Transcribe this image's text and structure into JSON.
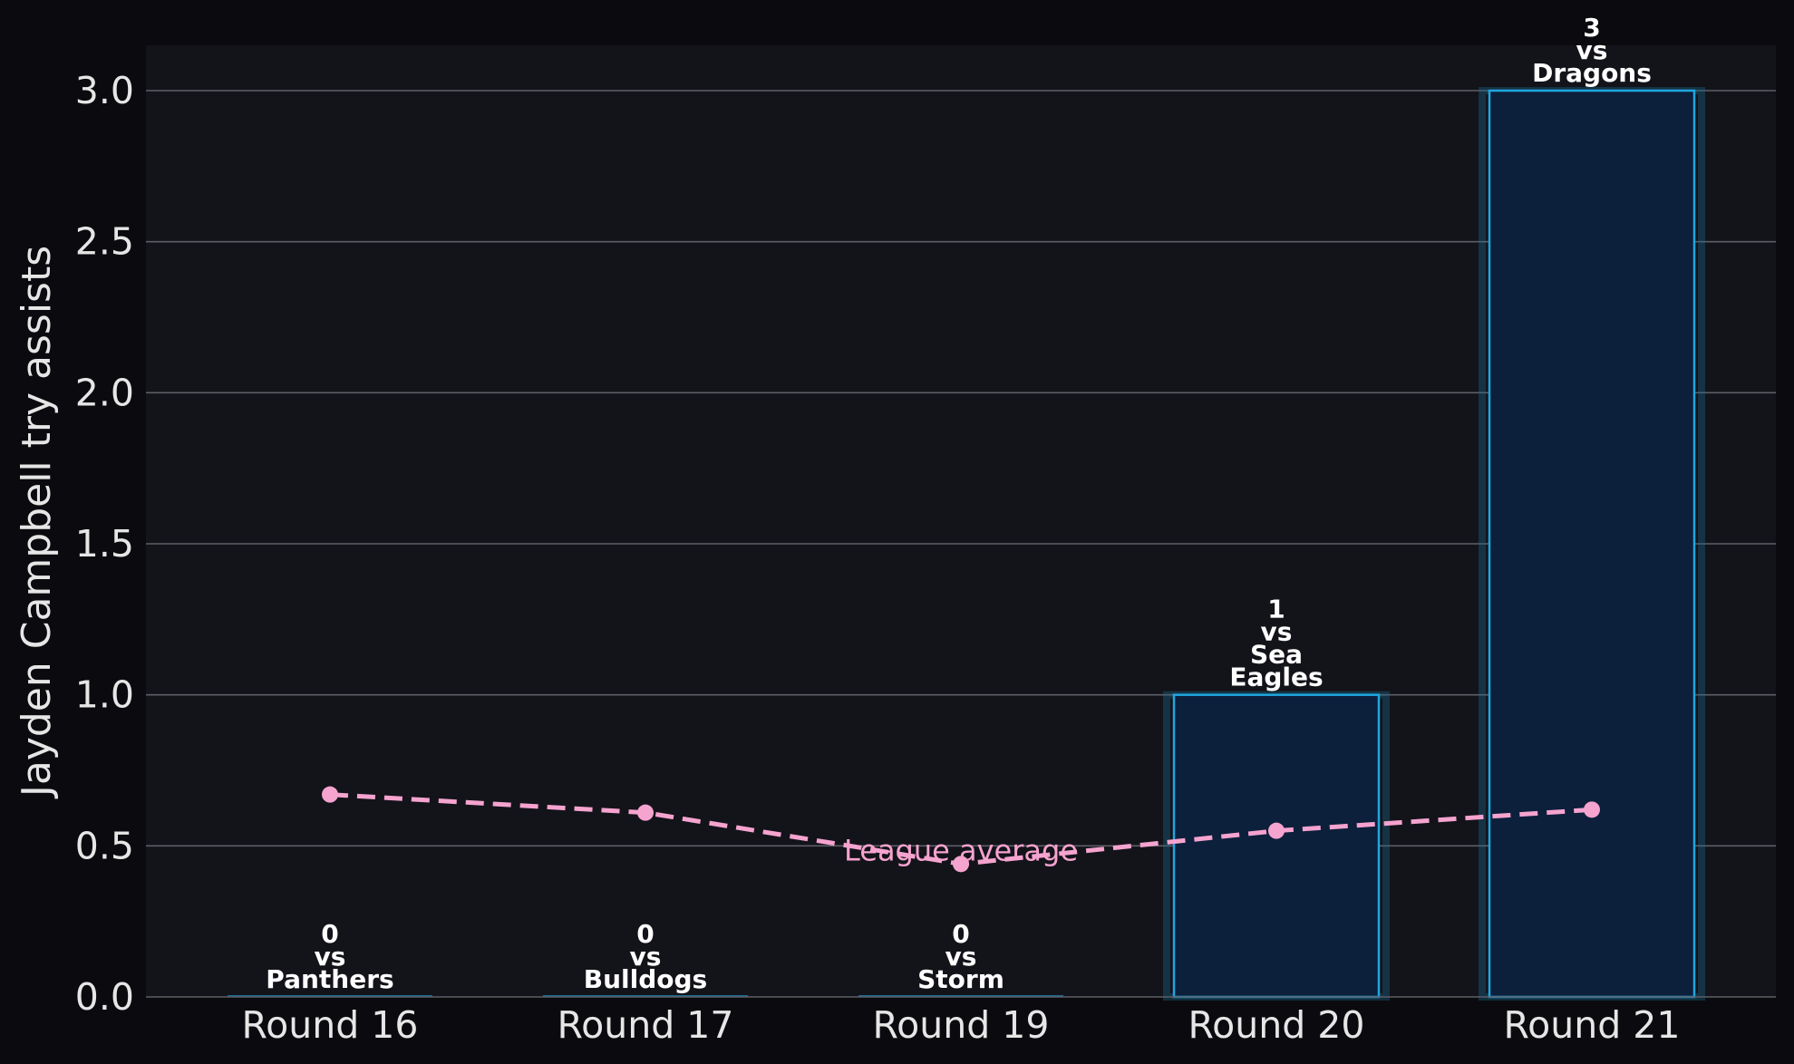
{
  "chart_data": {
    "type": "bar",
    "categories": [
      "Round 16",
      "Round 17",
      "Round 19",
      "Round 20",
      "Round 21"
    ],
    "values": [
      0,
      0,
      0,
      1,
      3
    ],
    "opponents": [
      "Panthers",
      "Bulldogs",
      "Storm",
      "Sea Eagles",
      "Dragons"
    ],
    "bar_labels": [
      [
        "0",
        "vs",
        "Panthers"
      ],
      [
        "0",
        "vs",
        "Bulldogs"
      ],
      [
        "0",
        "vs",
        "Storm"
      ],
      [
        "1",
        "vs",
        "Sea",
        "Eagles"
      ],
      [
        "3",
        "vs",
        "Dragons"
      ]
    ],
    "series": [
      {
        "name": "League average",
        "type": "line",
        "style": "dashed",
        "values": [
          0.67,
          0.61,
          0.44,
          0.55,
          0.62
        ]
      }
    ],
    "line_label": "League average",
    "ylabel": "Jayden Campbell try assists",
    "xlabel": "",
    "ylim": [
      0,
      3.15
    ],
    "yticks": [
      "0.0",
      "0.5",
      "1.0",
      "1.5",
      "2.0",
      "2.5",
      "3.0"
    ],
    "grid": "horizontal",
    "colors": {
      "background": "#0b0b0f",
      "plot_background": "#13131a",
      "bar_fill": "#0c1f3b",
      "bar_edge": "#1ea7e0",
      "bar_glow": "#1a6f96",
      "line": "#f5a3cf",
      "grid": "#5e5e66",
      "text": "#e6e6e6"
    }
  }
}
